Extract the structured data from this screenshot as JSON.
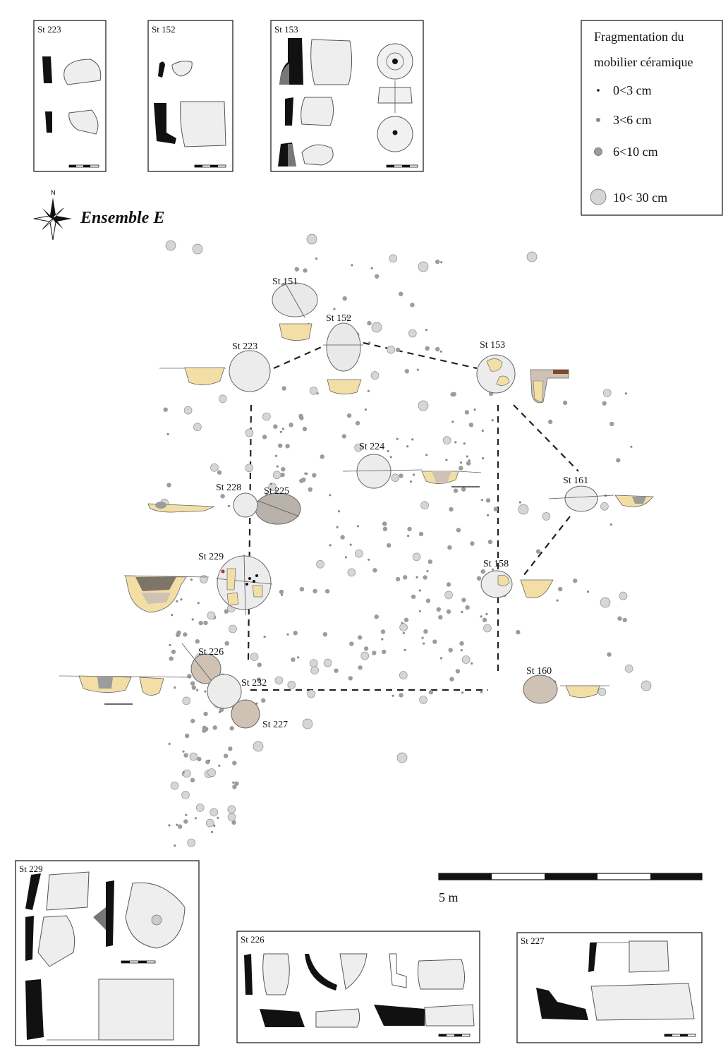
{
  "plan": {
    "title": "Ensemble E",
    "north_letter": "N",
    "scale_label": "5 m"
  },
  "legend": {
    "title_line1": "Fragmentation du",
    "title_line2": "mobilier céramique",
    "items": [
      {
        "label": "0<3 cm",
        "color": "#111111"
      },
      {
        "label": "3<6 cm",
        "color": "#8a8a8a"
      },
      {
        "label": "6<10 cm",
        "color": "#9c9c9c"
      },
      {
        "label": "10< 30 cm",
        "color": "#d6d6d6"
      }
    ]
  },
  "structures": {
    "st151": "St 151",
    "st152": "St 152",
    "st153": "St 153",
    "st223": "St 223",
    "st224": "St 224",
    "st225": "St 225",
    "st226": "St 226",
    "st227": "St 227",
    "st228": "St 228",
    "st229": "St 229",
    "st232": "St 232",
    "st158": "St 158",
    "st160": "St 160",
    "st161": "St 161"
  },
  "inset_boxes": {
    "top_st223": "St 223",
    "top_st152": "St 152",
    "top_st153": "St 153",
    "bottom_st229": "St 229",
    "bottom_st226": "St 226",
    "bottom_st227": "St 227"
  },
  "colors": {
    "section_fill": "#f3dfa6",
    "section_dark": "#7d7668",
    "feature_fill": "#e8e8e8",
    "feature_brown": "#cfc2b5",
    "dot_small": "#8a8a8a",
    "dot_medium": "#9c9c9c",
    "dot_large": "#d6d6d6"
  }
}
